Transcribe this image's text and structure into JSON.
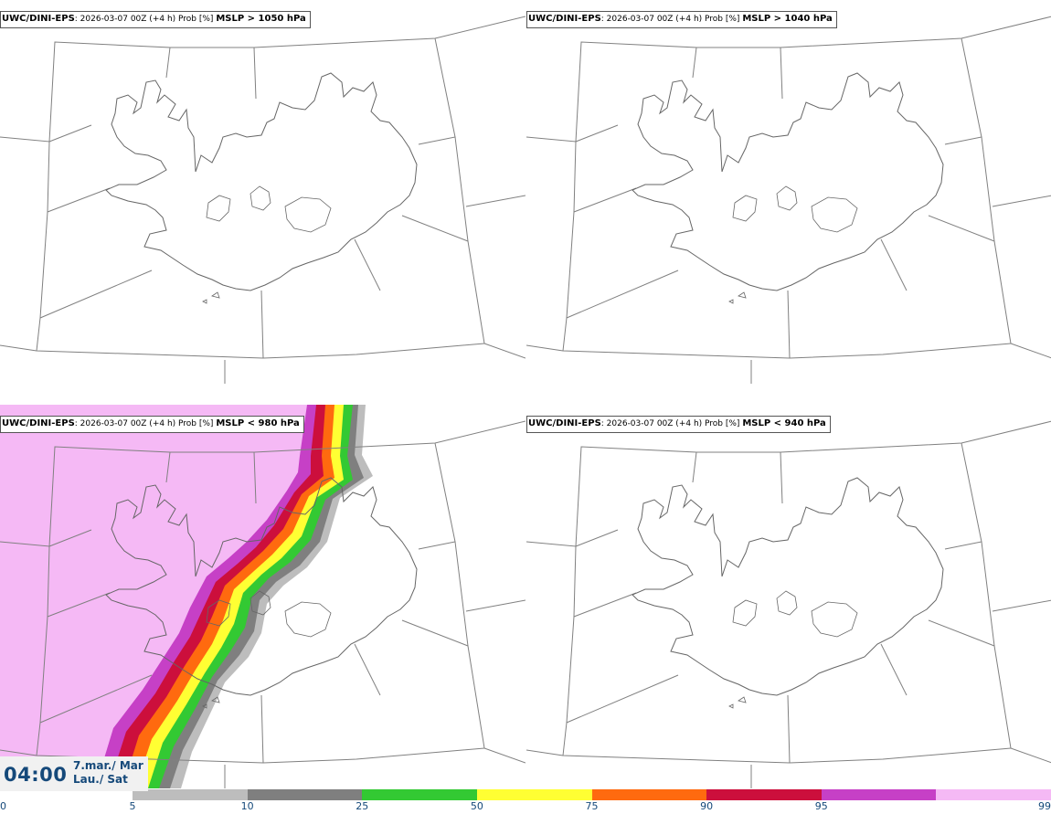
{
  "panels": [
    {
      "source": "UWC/DINI-EPS",
      "run": ": 2026-03-07 00Z (+4 h) Prob [%]",
      "condition": "MSLP > 1050 hPa"
    },
    {
      "source": "UWC/DINI-EPS",
      "run": ": 2026-03-07 00Z (+4 h) Prob [%]",
      "condition": "MSLP > 1040 hPa"
    },
    {
      "source": "UWC/DINI-EPS",
      "run": ": 2026-03-07 00Z (+4 h) Prob [%]",
      "condition": "MSLP < 980 hPa"
    },
    {
      "source": "UWC/DINI-EPS",
      "run": ": 2026-03-07 00Z (+4 h) Prob [%]",
      "condition": "MSLP < 940 hPa"
    }
  ],
  "valid_time": {
    "clock": "04:00",
    "date_line1": "7.mar./ Mar",
    "date_line2": "Lau./ Sat"
  },
  "legend": {
    "ticks": [
      "0",
      "5",
      "10",
      "25",
      "50",
      "75",
      "90",
      "95",
      "99"
    ],
    "colors": [
      "#bdbdbd",
      "#7f7f7f",
      "#33c933",
      "#ffff33",
      "#ff6a0f",
      "#cc0f3c",
      "#c640c6",
      "#f5b9f5"
    ]
  }
}
